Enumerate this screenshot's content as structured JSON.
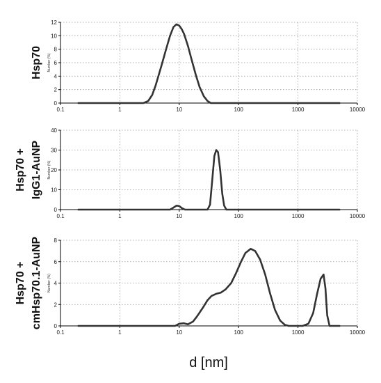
{
  "figure": {
    "xlabel": "d [nm]"
  },
  "chart_data": [
    {
      "type": "line",
      "title": "Hsp70",
      "ylabel": "Number (%)",
      "xscale": "log",
      "xlim": [
        0.1,
        10000
      ],
      "ylim": [
        0,
        12
      ],
      "xticks": [
        "0.1",
        "1",
        "10",
        "100",
        "1000",
        "10000"
      ],
      "yticks": [
        "0",
        "2",
        "4",
        "6",
        "8",
        "10",
        "12"
      ],
      "grid": true,
      "series": [
        {
          "x": [
            0.2,
            2.5,
            3.0,
            3.5,
            4.0,
            5.0,
            6.0,
            7.0,
            8.0,
            9.0,
            10.0,
            11.0,
            12.0,
            14.0,
            16.0,
            19.0,
            22.0,
            26.0,
            30.0,
            34.0,
            5000
          ],
          "y": [
            0,
            0,
            0.3,
            1.2,
            2.6,
            5.5,
            8.0,
            10.0,
            11.3,
            11.7,
            11.5,
            11.0,
            10.3,
            8.5,
            6.6,
            4.2,
            2.4,
            1.0,
            0.3,
            0,
            0
          ]
        }
      ]
    },
    {
      "type": "line",
      "title": "Hsp70 + IgG1-AuNP",
      "ylabel": "Number (%)",
      "xscale": "log",
      "xlim": [
        0.1,
        10000
      ],
      "ylim": [
        0,
        40
      ],
      "xticks": [
        "0.1",
        "1",
        "10",
        "100",
        "1000",
        "10000"
      ],
      "yticks": [
        "0",
        "10",
        "20",
        "30",
        "40"
      ],
      "grid": true,
      "series": [
        {
          "x": [
            0.2,
            7.0,
            8.0,
            9.0,
            10.0,
            11.0,
            12.5,
            30.0,
            33.0,
            36.0,
            39.0,
            42.0,
            45.0,
            49.0,
            53.0,
            57.0,
            62.0,
            5000
          ],
          "y": [
            0,
            0,
            1.0,
            2.0,
            1.8,
            0.8,
            0,
            0,
            2.5,
            15.0,
            27.0,
            30.0,
            29.0,
            20.0,
            8.0,
            2.0,
            0,
            0
          ]
        }
      ]
    },
    {
      "type": "line",
      "title": "Hsp70 + cmHsp70.1-AuNP",
      "ylabel": "Number (%)",
      "xscale": "log",
      "xlim": [
        0.1,
        10000
      ],
      "ylim": [
        0,
        8
      ],
      "xticks": [
        "0.1",
        "1",
        "10",
        "100",
        "1000",
        "10000"
      ],
      "yticks": [
        "0",
        "2",
        "4",
        "6",
        "8"
      ],
      "grid": true,
      "series": [
        {
          "x": [
            0.2,
            8.5,
            10.0,
            12.0,
            14.0,
            17.0,
            20.0,
            25.0,
            30.0,
            35.0,
            42.0,
            50.0,
            60.0,
            75.0,
            90.0,
            110.0,
            130.0,
            160.0,
            190.0,
            230.0,
            280.0,
            340.0,
            410.0,
            500.0,
            600.0,
            700.0,
            1200.0,
            1500.0,
            1800.0,
            2100.0,
            2400.0,
            2700.0,
            2900.0,
            3100.0,
            3400.0,
            5000.0
          ],
          "y": [
            0,
            0,
            0.2,
            0.25,
            0.15,
            0.4,
            0.9,
            1.7,
            2.4,
            2.8,
            3.0,
            3.1,
            3.4,
            4.0,
            4.9,
            6.0,
            6.8,
            7.2,
            7.0,
            6.2,
            4.8,
            3.0,
            1.5,
            0.5,
            0.1,
            0,
            0,
            0.2,
            1.2,
            3.0,
            4.4,
            4.8,
            3.5,
            1.0,
            0,
            0
          ]
        }
      ]
    }
  ]
}
